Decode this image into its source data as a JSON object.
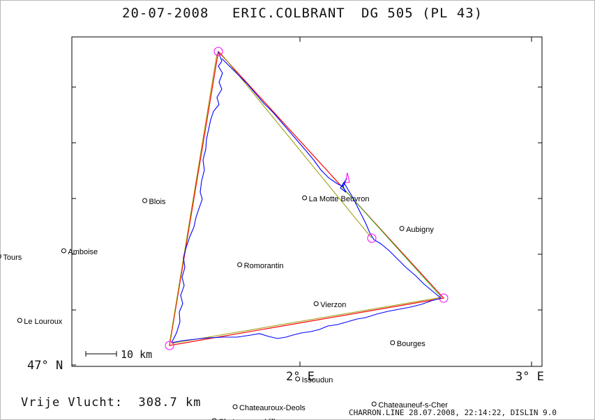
{
  "header": {
    "date": "20-07-2008",
    "pilot": "ERIC.COLBRANT",
    "glider": "DG 505 (PL 43)"
  },
  "axes": {
    "y_label": "47° N",
    "x_labels": [
      "2° E",
      "3° E"
    ]
  },
  "towns": [
    {
      "name": "Blois",
      "lon": 1.33,
      "lat": 47.59
    },
    {
      "name": "La Motte Beuvron",
      "lon": 2.02,
      "lat": 47.6
    },
    {
      "name": "Aubigny",
      "lon": 2.44,
      "lat": 47.49
    },
    {
      "name": "Amboise",
      "lon": 0.98,
      "lat": 47.41
    },
    {
      "name": "Romorantin",
      "lon": 1.74,
      "lat": 47.36
    },
    {
      "name": "Tours",
      "lon": 0.7,
      "lat": 47.39
    },
    {
      "name": "Vierzon",
      "lon": 2.07,
      "lat": 47.22
    },
    {
      "name": "Le Louroux",
      "lon": 0.79,
      "lat": 47.16
    },
    {
      "name": "Bourges",
      "lon": 2.4,
      "lat": 47.08
    },
    {
      "name": "Issoudun",
      "lon": 1.99,
      "lat": 46.95
    },
    {
      "name": "Chateauroux-Deols",
      "lon": 1.72,
      "lat": 46.85
    },
    {
      "name": "Chateauneuf-s-Cher",
      "lon": 2.32,
      "lat": 46.86
    },
    {
      "name": "Chateauroux-Villers",
      "lon": 1.63,
      "lat": 46.8
    }
  ],
  "scale_bar": {
    "label": "10 km"
  },
  "footer": {
    "distance_label": "Vrije Vlucht:",
    "distance_value": "308.7 km",
    "credit": "CHARRON.LINE 28.07.2008, 22:14:22, DISLIN 9.0"
  },
  "colors": {
    "track": "#0000ff",
    "task_outer": "#ff0000",
    "task_inner": "#999900",
    "optimized": "#33cc33",
    "turnpoints": "#ff00ff",
    "frame": "#000000"
  }
}
